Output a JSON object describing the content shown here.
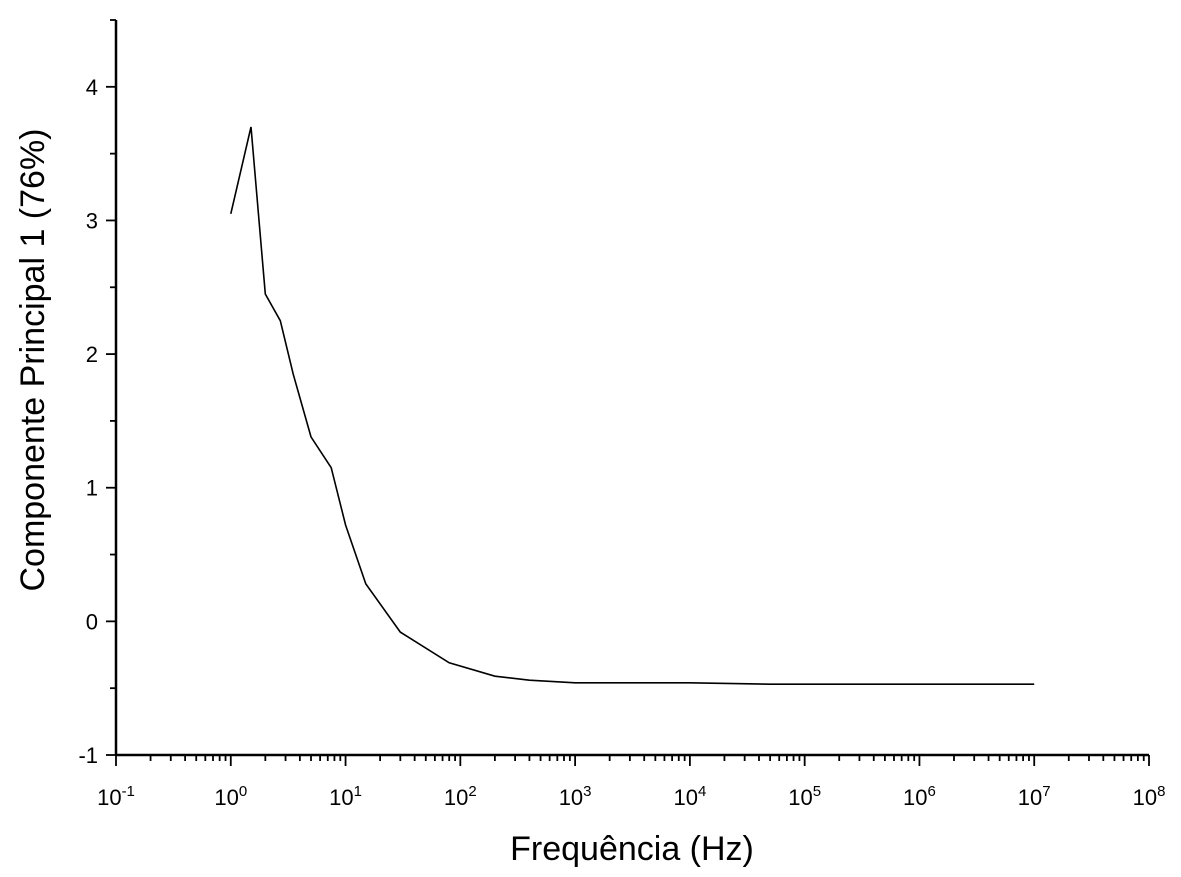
{
  "chart_data": {
    "type": "line",
    "xlabel": "Frequência (Hz)",
    "ylabel": "Componente Principal 1 (76%)",
    "xscale": "log",
    "xlim": [
      0.1,
      100000000
    ],
    "ylim": [
      -1,
      4.5
    ],
    "x_ticks": [
      0.1,
      1,
      10,
      100,
      1000,
      10000,
      100000,
      1000000,
      10000000,
      100000000
    ],
    "x_tick_labels": [
      {
        "base": "10",
        "exp": "-1"
      },
      {
        "base": "10",
        "exp": "0"
      },
      {
        "base": "10",
        "exp": "1"
      },
      {
        "base": "10",
        "exp": "2"
      },
      {
        "base": "10",
        "exp": "3"
      },
      {
        "base": "10",
        "exp": "4"
      },
      {
        "base": "10",
        "exp": "5"
      },
      {
        "base": "10",
        "exp": "6"
      },
      {
        "base": "10",
        "exp": "7"
      },
      {
        "base": "10",
        "exp": "8"
      }
    ],
    "y_ticks": [
      -1,
      0,
      1,
      2,
      3,
      4
    ],
    "y_tick_labels": [
      "-1",
      "0",
      "1",
      "2",
      "3",
      "4"
    ],
    "grid": false,
    "series": [
      {
        "x": [
          1,
          1.5,
          2,
          2.7,
          3.5,
          5,
          7.5,
          10,
          15,
          30,
          80,
          200,
          400,
          1000,
          10000,
          50000,
          100000,
          1000000,
          10000000
        ],
        "y": [
          3.05,
          3.7,
          2.45,
          2.25,
          1.85,
          1.38,
          1.15,
          0.72,
          0.28,
          -0.08,
          -0.31,
          -0.41,
          -0.44,
          -0.46,
          -0.46,
          -0.47,
          -0.47,
          -0.47,
          -0.47
        ]
      }
    ]
  }
}
